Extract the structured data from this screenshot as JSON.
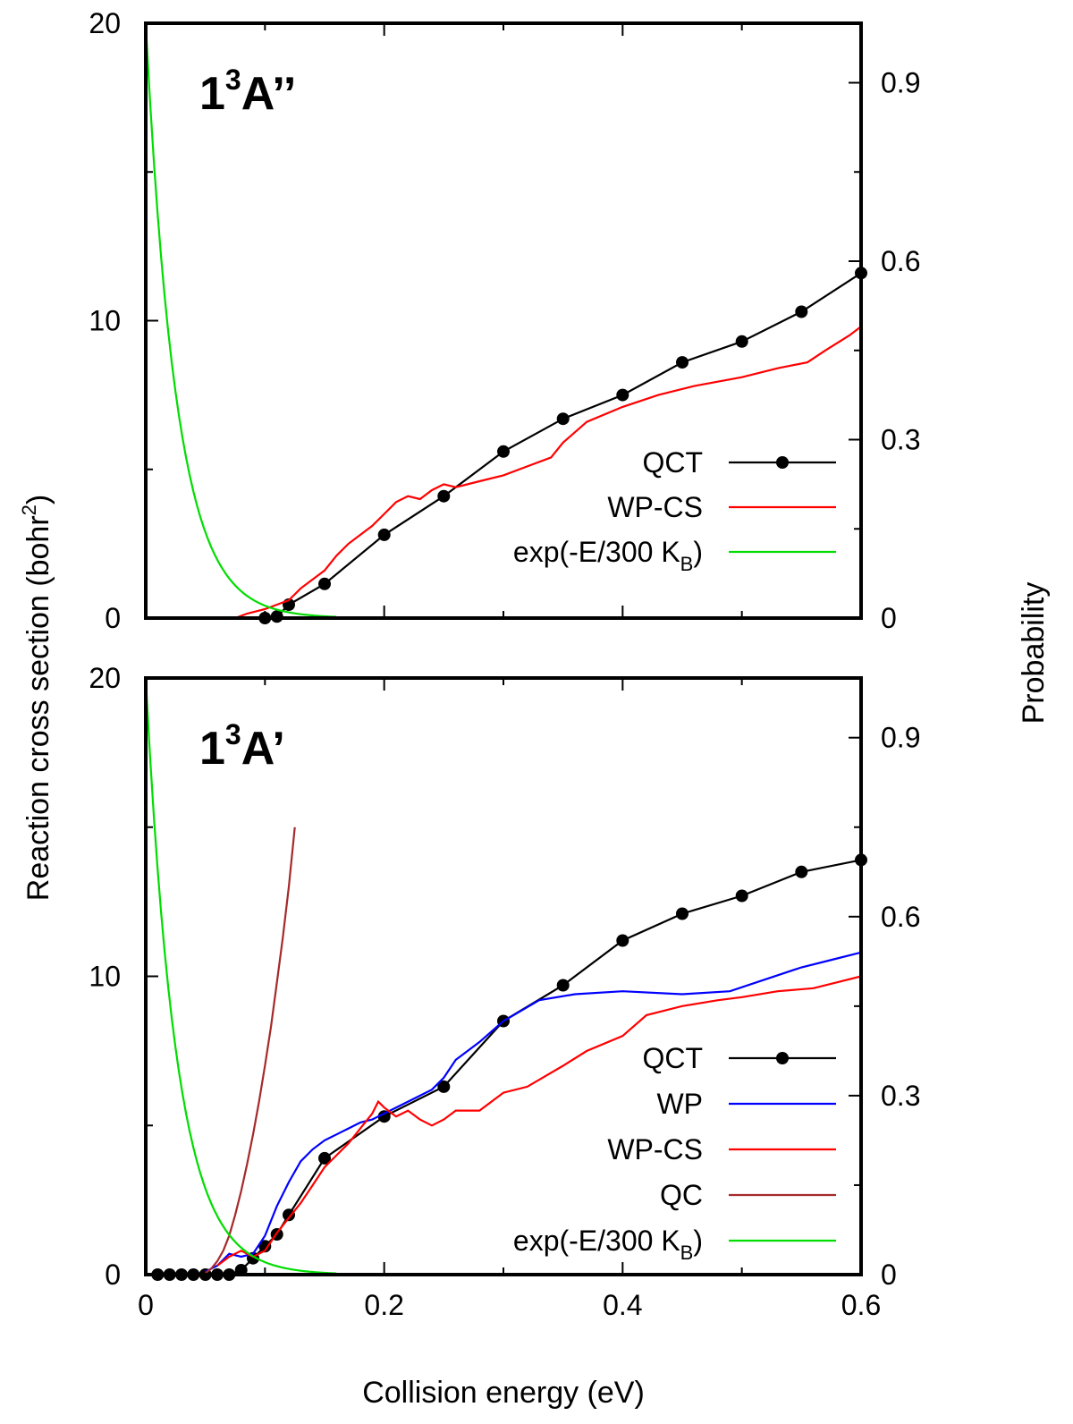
{
  "chart_data": {
    "shared": {
      "xlabel": "Collision energy (eV)",
      "ylabel": "Reaction cross section (bohr",
      "ylabel_sup": "2",
      "ylabel_end": ")",
      "y2label": "Probability",
      "xlim": [
        0,
        0.6
      ],
      "ylim": [
        0,
        20
      ],
      "y2lim": [
        0,
        1.0
      ],
      "xticks": [
        0,
        0.2,
        0.4,
        0.6
      ],
      "xtick_labels": [
        "0",
        "0.2",
        "0.4",
        "0.6"
      ],
      "xminor": [
        0.1,
        0.3,
        0.5
      ],
      "yticks": [
        0,
        10,
        20
      ],
      "ytick_labels": [
        "0",
        "10",
        "20"
      ],
      "yminor": [
        5,
        15
      ],
      "y2ticks": [
        0,
        0.3,
        0.6,
        0.9
      ],
      "y2tick_labels": [
        "0",
        "0.3",
        "0.6",
        "0.9"
      ],
      "y2minor": [
        0.15,
        0.45,
        0.75
      ]
    },
    "panels": [
      {
        "type": "line",
        "panel_label_main": "1",
        "panel_label_sup": "3",
        "panel_label_end": "A’’",
        "legend": [
          {
            "label": "QCT",
            "color": "#000000",
            "marker": true
          },
          {
            "label": "WP-CS",
            "color": "#ff0000",
            "marker": false
          },
          {
            "label": "exp(-E/300 K",
            "sub": "B",
            "end": ")",
            "color": "#00dd00",
            "marker": false
          }
        ],
        "series": [
          {
            "name": "QCT",
            "color": "#000000",
            "markers": true,
            "axis": "left",
            "x": [
              0.1,
              0.11,
              0.12,
              0.15,
              0.2,
              0.25,
              0.3,
              0.35,
              0.4,
              0.45,
              0.5,
              0.55,
              0.6
            ],
            "y": [
              0.0,
              0.05,
              0.45,
              1.15,
              2.8,
              4.1,
              5.6,
              6.7,
              7.5,
              8.6,
              9.3,
              10.3,
              11.6
            ]
          },
          {
            "name": "WP-CS",
            "color": "#ff0000",
            "markers": false,
            "axis": "left",
            "x": [
              0.075,
              0.085,
              0.1,
              0.11,
              0.12,
              0.13,
              0.14,
              0.15,
              0.16,
              0.17,
              0.18,
              0.19,
              0.2,
              0.21,
              0.22,
              0.23,
              0.24,
              0.25,
              0.26,
              0.28,
              0.3,
              0.32,
              0.34,
              0.35,
              0.37,
              0.4,
              0.43,
              0.46,
              0.5,
              0.53,
              0.555,
              0.57,
              0.59,
              0.6
            ],
            "y": [
              0.0,
              0.15,
              0.3,
              0.45,
              0.6,
              1.0,
              1.3,
              1.6,
              2.1,
              2.5,
              2.8,
              3.1,
              3.5,
              3.9,
              4.1,
              4.0,
              4.3,
              4.5,
              4.4,
              4.6,
              4.8,
              5.1,
              5.4,
              5.9,
              6.6,
              7.1,
              7.5,
              7.8,
              8.1,
              8.4,
              8.6,
              9.0,
              9.5,
              9.8
            ]
          },
          {
            "name": "exp(-E/300 KB)",
            "color": "#00dd00",
            "markers": false,
            "axis": "right",
            "kind": "exp",
            "kT": 0.02585,
            "xmax": 0.16
          }
        ]
      },
      {
        "type": "line",
        "panel_label_main": "1",
        "panel_label_sup": "3",
        "panel_label_end": "A’",
        "legend": [
          {
            "label": "QCT",
            "color": "#000000",
            "marker": true
          },
          {
            "label": "WP",
            "color": "#0000ff",
            "marker": false
          },
          {
            "label": "WP-CS",
            "color": "#ff0000",
            "marker": false
          },
          {
            "label": "QC",
            "color": "#a52a2a",
            "marker": false
          },
          {
            "label": "exp(-E/300 K",
            "sub": "B",
            "end": ")",
            "color": "#00dd00",
            "marker": false
          }
        ],
        "series": [
          {
            "name": "QCT",
            "color": "#000000",
            "markers": true,
            "axis": "left",
            "x": [
              0.01,
              0.02,
              0.03,
              0.04,
              0.05,
              0.06,
              0.07,
              0.08,
              0.09,
              0.1,
              0.11,
              0.12,
              0.15,
              0.2,
              0.25,
              0.3,
              0.35,
              0.4,
              0.45,
              0.5,
              0.55,
              0.6
            ],
            "y": [
              0.0,
              0.0,
              0.0,
              0.0,
              0.0,
              0.0,
              0.0,
              0.15,
              0.55,
              0.95,
              1.35,
              2.0,
              3.9,
              5.3,
              6.3,
              8.5,
              9.7,
              11.2,
              12.1,
              12.7,
              13.5,
              13.9
            ]
          },
          {
            "name": "WP",
            "color": "#0000ff",
            "markers": false,
            "axis": "left",
            "x": [
              0.05,
              0.06,
              0.07,
              0.08,
              0.09,
              0.1,
              0.11,
              0.12,
              0.13,
              0.14,
              0.15,
              0.16,
              0.17,
              0.18,
              0.19,
              0.2,
              0.22,
              0.24,
              0.25,
              0.26,
              0.28,
              0.3,
              0.33,
              0.36,
              0.4,
              0.45,
              0.49,
              0.52,
              0.55,
              0.58,
              0.6
            ],
            "y": [
              0.1,
              0.3,
              0.7,
              0.6,
              0.7,
              1.3,
              2.3,
              3.1,
              3.8,
              4.2,
              4.5,
              4.7,
              4.9,
              5.1,
              5.2,
              5.4,
              5.8,
              6.2,
              6.6,
              7.2,
              7.8,
              8.5,
              9.2,
              9.4,
              9.5,
              9.4,
              9.5,
              9.9,
              10.3,
              10.6,
              10.8
            ]
          },
          {
            "name": "WP-CS",
            "color": "#ff0000",
            "markers": false,
            "axis": "left",
            "x": [
              0.06,
              0.07,
              0.08,
              0.09,
              0.1,
              0.11,
              0.12,
              0.13,
              0.14,
              0.15,
              0.16,
              0.17,
              0.18,
              0.19,
              0.195,
              0.2,
              0.21,
              0.22,
              0.23,
              0.24,
              0.25,
              0.26,
              0.27,
              0.28,
              0.3,
              0.32,
              0.35,
              0.37,
              0.4,
              0.42,
              0.45,
              0.48,
              0.5,
              0.53,
              0.56,
              0.58,
              0.6
            ],
            "y": [
              0.3,
              0.6,
              0.8,
              0.6,
              0.8,
              1.4,
              1.9,
              2.4,
              3.0,
              3.6,
              4.0,
              4.4,
              4.9,
              5.4,
              5.8,
              5.6,
              5.3,
              5.5,
              5.2,
              5.0,
              5.2,
              5.5,
              5.5,
              5.5,
              6.1,
              6.3,
              7.0,
              7.5,
              8.0,
              8.7,
              9.0,
              9.2,
              9.3,
              9.5,
              9.6,
              9.8,
              10.0
            ]
          },
          {
            "name": "QC",
            "color": "#a52a2a",
            "markers": false,
            "axis": "left",
            "x": [
              0.05,
              0.055,
              0.06,
              0.065,
              0.07,
              0.075,
              0.08,
              0.085,
              0.09,
              0.095,
              0.1,
              0.105,
              0.11,
              0.115,
              0.12,
              0.125
            ],
            "y": [
              0.05,
              0.2,
              0.45,
              0.8,
              1.3,
              2.0,
              2.8,
              3.7,
              4.7,
              5.8,
              7.0,
              8.3,
              9.8,
              11.3,
              13.0,
              15.0
            ]
          },
          {
            "name": "exp(-E/300 KB)",
            "color": "#00dd00",
            "markers": false,
            "axis": "right",
            "kind": "exp",
            "kT": 0.02585,
            "xmax": 0.16
          }
        ]
      }
    ]
  }
}
